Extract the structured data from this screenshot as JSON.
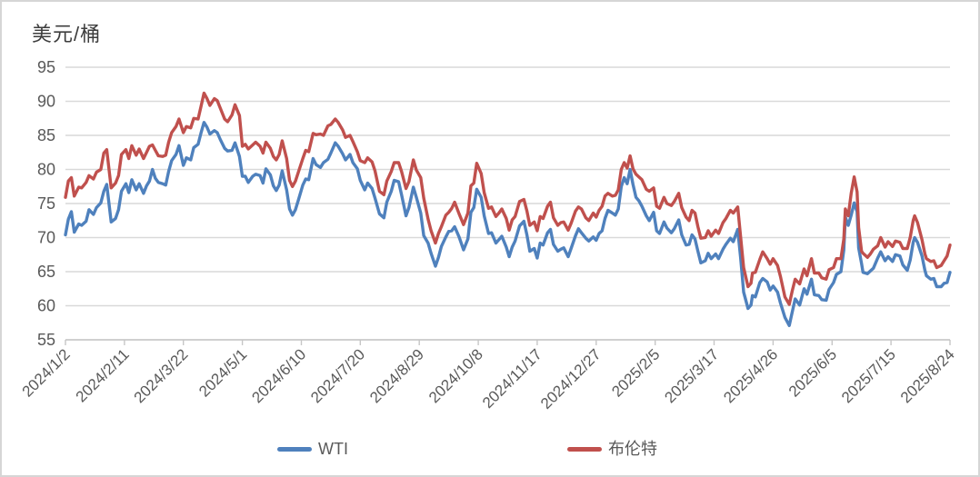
{
  "window": {
    "background": "#ffffff",
    "border_color": "#d6d6d6"
  },
  "chart_data": {
    "type": "line",
    "title": "美元/桶",
    "ylabel": "美元/桶",
    "xlabel": "",
    "grid": "horizontal",
    "gridline_color": "#d9d9d9",
    "axis_color": "#c6c6c6",
    "tick_label_color": "#595959",
    "title_color": "#3d3d3d",
    "legend_position": "bottom-center",
    "ylim": [
      55,
      95
    ],
    "y_ticks": [
      55,
      60,
      65,
      70,
      75,
      80,
      85,
      90,
      95
    ],
    "x_domain_days": [
      0,
      600
    ],
    "x_tick_interval_days": 40,
    "x_tick_labels": [
      "2024/1/2",
      "2024/2/11",
      "2024/3/22",
      "2024/5/1",
      "2024/6/10",
      "2024/7/20",
      "2024/8/29",
      "2024/10/8",
      "2024/11/17",
      "2024/12/27",
      "2025/2/5",
      "2025/3/17",
      "2025/4/26",
      "2025/6/5",
      "2025/7/15",
      "2025/8/24"
    ],
    "x_days": [
      0,
      2,
      4,
      6,
      9,
      11,
      14,
      16,
      19,
      21,
      24,
      26,
      28,
      31,
      34,
      36,
      38,
      41,
      43,
      45,
      48,
      50,
      53,
      55,
      57,
      59,
      61,
      63,
      66,
      68,
      70,
      72,
      75,
      77,
      80,
      82,
      85,
      87,
      90,
      92,
      94,
      96,
      98,
      101,
      103,
      105,
      108,
      110,
      113,
      115,
      118,
      120,
      122,
      124,
      127,
      129,
      132,
      134,
      136,
      139,
      141,
      143,
      145,
      147,
      150,
      152,
      154,
      156,
      158,
      161,
      163,
      165,
      168,
      170,
      173,
      175,
      178,
      180,
      183,
      185,
      188,
      190,
      193,
      195,
      198,
      200,
      203,
      205,
      208,
      210,
      213,
      216,
      218,
      221,
      223,
      226,
      228,
      231,
      233,
      236,
      238,
      241,
      243,
      246,
      248,
      251,
      253,
      255,
      258,
      260,
      262,
      264,
      267,
      270,
      273,
      275,
      277,
      279,
      282,
      284,
      287,
      289,
      292,
      294,
      296,
      299,
      301,
      303,
      305,
      308,
      311,
      313,
      315,
      318,
      320,
      322,
      324,
      327,
      329,
      331,
      334,
      336,
      338,
      341,
      343,
      346,
      348,
      350,
      353,
      355,
      358,
      360,
      362,
      364,
      366,
      368,
      371,
      373,
      375,
      377,
      379,
      381,
      383,
      385,
      387,
      389,
      391,
      394,
      396,
      399,
      401,
      403,
      406,
      408,
      411,
      413,
      416,
      418,
      421,
      423,
      425,
      427,
      429,
      431,
      434,
      436,
      438,
      441,
      443,
      446,
      448,
      451,
      453,
      456,
      458,
      460,
      463,
      465,
      466,
      468,
      471,
      473,
      476,
      478,
      480,
      483,
      485,
      488,
      491,
      493,
      495,
      498,
      501,
      503,
      506,
      508,
      511,
      513,
      516,
      518,
      521,
      523,
      526,
      528,
      529,
      531,
      533,
      535,
      537,
      538,
      540,
      541,
      544,
      546,
      548,
      551,
      553,
      556,
      558,
      561,
      563,
      566,
      568,
      571,
      573,
      575,
      576,
      578,
      581,
      583,
      584,
      587,
      589,
      591,
      594,
      596,
      598,
      600
    ],
    "series": [
      {
        "name": "WTI",
        "color": "#4F81BD",
        "values": [
          70.4,
          72.7,
          73.8,
          70.8,
          72.0,
          71.8,
          72.4,
          74.1,
          73.4,
          74.4,
          75.1,
          76.8,
          77.8,
          72.3,
          72.8,
          74.1,
          76.8,
          77.9,
          76.6,
          78.5,
          77.0,
          77.9,
          76.5,
          77.6,
          78.3,
          80.0,
          78.7,
          78.1,
          77.9,
          77.7,
          79.7,
          81.3,
          82.2,
          83.5,
          80.6,
          81.7,
          81.4,
          83.2,
          83.7,
          85.4,
          86.9,
          86.2,
          85.2,
          85.7,
          85.4,
          84.4,
          83.1,
          82.7,
          82.8,
          83.9,
          81.9,
          79.0,
          79.0,
          78.1,
          79.0,
          79.3,
          79.1,
          78.0,
          80.1,
          79.2,
          77.6,
          76.9,
          77.7,
          79.8,
          77.0,
          74.2,
          73.3,
          74.1,
          75.5,
          77.7,
          78.6,
          78.5,
          81.6,
          80.7,
          80.3,
          81.0,
          81.5,
          82.4,
          83.9,
          83.4,
          82.3,
          81.4,
          82.2,
          81.0,
          80.1,
          78.4,
          77.0,
          78.0,
          77.2,
          75.8,
          73.5,
          72.9,
          75.2,
          76.8,
          78.4,
          78.2,
          76.3,
          73.2,
          74.4,
          77.4,
          75.9,
          73.6,
          70.3,
          69.2,
          67.7,
          65.8,
          67.1,
          68.7,
          70.1,
          70.9,
          71.0,
          71.6,
          70.1,
          68.2,
          69.8,
          73.7,
          74.4,
          77.1,
          75.9,
          73.2,
          70.6,
          70.7,
          69.2,
          69.7,
          70.2,
          68.6,
          67.2,
          68.6,
          69.5,
          71.7,
          72.4,
          70.4,
          68.0,
          68.4,
          67.0,
          69.2,
          68.9,
          70.7,
          71.2,
          69.0,
          68.0,
          68.3,
          68.5,
          67.2,
          68.4,
          70.3,
          71.3,
          70.7,
          69.9,
          69.5,
          70.1,
          69.6,
          70.6,
          71.0,
          72.8,
          74.0,
          73.6,
          73.3,
          74.2,
          77.5,
          78.8,
          77.9,
          80.0,
          77.8,
          75.9,
          75.4,
          74.6,
          73.2,
          72.5,
          73.7,
          71.0,
          70.6,
          72.3,
          71.4,
          70.7,
          71.3,
          72.6,
          70.4,
          68.9,
          69.0,
          70.4,
          69.8,
          68.0,
          66.3,
          66.6,
          67.7,
          66.9,
          67.6,
          66.9,
          68.3,
          69.0,
          69.9,
          69.4,
          71.2,
          67.0,
          62.0,
          59.6,
          60.1,
          61.5,
          61.3,
          63.4,
          64.0,
          63.5,
          62.3,
          62.9,
          62.0,
          60.4,
          58.3,
          57.1,
          59.1,
          61.0,
          60.1,
          62.5,
          61.7,
          63.9,
          61.6,
          61.5,
          60.9,
          60.8,
          62.4,
          63.4,
          64.6,
          65.0,
          68.2,
          73.0,
          71.8,
          73.3,
          75.1,
          73.8,
          68.5,
          66.2,
          64.9,
          64.7,
          65.1,
          65.5,
          67.0,
          67.9,
          66.6,
          67.2,
          66.5,
          67.5,
          67.3,
          66.0,
          65.2,
          66.7,
          69.3,
          70.0,
          69.3,
          67.3,
          65.2,
          64.4,
          63.9,
          64.0,
          62.8,
          62.8,
          63.3,
          63.4,
          64.9
        ]
      },
      {
        "name": "布伦特",
        "color": "#C0504D",
        "values": [
          75.9,
          78.3,
          78.8,
          76.1,
          77.4,
          77.3,
          78.1,
          79.1,
          78.6,
          79.6,
          80.0,
          82.4,
          82.9,
          77.3,
          78.0,
          79.1,
          82.2,
          82.9,
          81.6,
          83.5,
          82.1,
          83.0,
          81.6,
          82.5,
          83.4,
          83.6,
          82.8,
          82.0,
          81.9,
          82.1,
          84.0,
          85.4,
          86.3,
          87.4,
          85.4,
          86.3,
          86.1,
          87.5,
          87.4,
          89.3,
          91.2,
          90.4,
          89.4,
          90.4,
          90.1,
          89.0,
          87.4,
          87.0,
          88.0,
          89.5,
          87.9,
          83.4,
          83.7,
          83.0,
          83.6,
          84.0,
          83.4,
          82.4,
          84.0,
          83.1,
          81.9,
          81.4,
          82.2,
          84.2,
          81.6,
          78.4,
          77.5,
          78.3,
          79.6,
          81.6,
          82.8,
          82.6,
          85.3,
          85.1,
          85.2,
          85.0,
          86.4,
          86.6,
          87.4,
          86.9,
          85.8,
          84.7,
          85.0,
          84.1,
          82.6,
          81.3,
          81.0,
          81.7,
          81.1,
          79.8,
          76.8,
          76.3,
          78.3,
          79.7,
          81.0,
          81.0,
          79.7,
          77.2,
          78.2,
          81.4,
          79.9,
          78.8,
          75.8,
          72.7,
          71.0,
          69.2,
          70.6,
          71.6,
          73.3,
          73.7,
          74.3,
          75.2,
          73.5,
          71.9,
          73.6,
          77.6,
          78.0,
          80.9,
          79.4,
          76.6,
          74.3,
          74.5,
          73.1,
          73.6,
          74.2,
          72.8,
          71.1,
          72.6,
          73.1,
          75.3,
          75.6,
          73.9,
          71.8,
          72.3,
          71.0,
          73.1,
          72.8,
          74.6,
          75.2,
          72.9,
          71.8,
          72.2,
          72.3,
          71.1,
          72.1,
          73.9,
          74.5,
          74.2,
          72.9,
          72.5,
          73.6,
          73.0,
          74.0,
          74.6,
          76.1,
          76.5,
          76.1,
          76.2,
          77.0,
          80.0,
          81.0,
          80.2,
          82.0,
          80.1,
          79.3,
          78.9,
          78.5,
          77.1,
          76.8,
          77.3,
          74.6,
          74.3,
          75.9,
          75.0,
          74.7,
          75.3,
          76.5,
          74.4,
          73.0,
          72.5,
          74.0,
          73.6,
          71.6,
          69.9,
          70.0,
          71.0,
          70.2,
          71.1,
          70.6,
          72.2,
          72.8,
          74.0,
          73.6,
          74.5,
          70.1,
          65.6,
          62.8,
          63.3,
          64.8,
          64.9,
          66.8,
          67.9,
          66.9,
          66.1,
          66.9,
          65.9,
          64.3,
          61.3,
          60.2,
          62.2,
          63.9,
          63.2,
          65.4,
          64.4,
          66.9,
          64.8,
          64.8,
          64.1,
          63.9,
          65.3,
          65.6,
          66.9,
          66.9,
          69.8,
          74.2,
          73.2,
          76.5,
          78.9,
          76.7,
          71.5,
          68.0,
          67.7,
          67.1,
          67.6,
          68.3,
          68.8,
          70.0,
          68.6,
          69.4,
          68.7,
          69.5,
          69.3,
          68.4,
          68.4,
          70.0,
          72.5,
          73.2,
          72.2,
          69.7,
          67.6,
          66.9,
          66.5,
          66.6,
          65.6,
          65.9,
          66.6,
          67.3,
          68.9
        ]
      }
    ]
  }
}
